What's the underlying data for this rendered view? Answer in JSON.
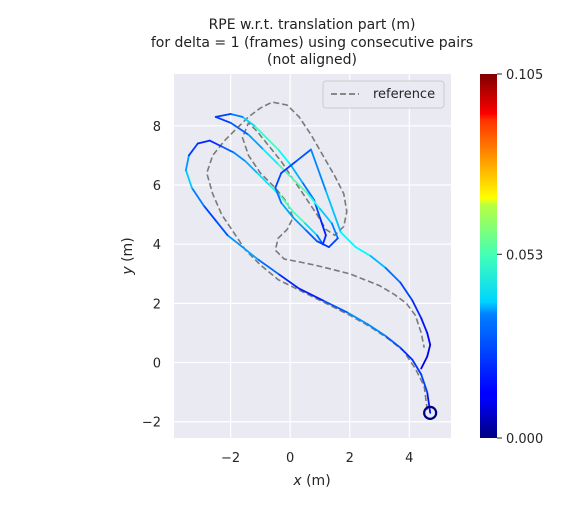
{
  "chart_data": {
    "type": "line",
    "title_lines": [
      "RPE w.r.t. translation part (m)",
      "for delta = 1 (frames) using consecutive pairs",
      "(not aligned)"
    ],
    "xlabel_var": "x",
    "xlabel_unit": " (m)",
    "ylabel_var": "y",
    "ylabel_unit": " (m)",
    "xlim": [
      -3.9,
      5.4
    ],
    "ylim": [
      -2.55,
      9.75
    ],
    "xticks": [
      -2,
      0,
      2,
      4
    ],
    "yticks": [
      -2,
      0,
      2,
      4,
      6,
      8
    ],
    "grid": true,
    "legend": {
      "position": "top-right",
      "entries": [
        "reference"
      ]
    },
    "colorbar": {
      "min": 0.0,
      "max": 0.105,
      "tick_values": [
        0.0,
        0.053,
        0.105
      ],
      "tick_labels": [
        "0.000",
        "0.053",
        "0.105"
      ],
      "colormap": "jet"
    },
    "series": [
      {
        "name": "reference",
        "style": "dashed",
        "color": "#7a7a7a",
        "x": [
          4.6,
          4.5,
          4.2,
          3.8,
          3.3,
          2.7,
          2.0,
          1.2,
          0.4,
          -0.4,
          -1.0,
          -1.5,
          -1.9,
          -2.3,
          -2.6,
          -2.8,
          -2.6,
          -2.2,
          -1.8,
          -1.4,
          -1.0,
          -0.6,
          -0.1,
          0.3,
          0.7,
          1.1,
          1.5,
          1.8,
          1.9,
          1.8,
          1.5,
          1.2,
          0.9,
          0.5,
          0.1,
          -0.3,
          -0.7,
          -1.1,
          -1.4,
          -1.6,
          -1.4,
          -1.0,
          -0.5,
          -0.1,
          0.1,
          -0.1,
          -0.4,
          -0.5,
          -0.2,
          0.3,
          0.8,
          1.2,
          1.6,
          2.0,
          2.5,
          3.0,
          3.5,
          3.9,
          4.2,
          4.4,
          4.5
        ],
        "y": [
          -1.6,
          -0.8,
          -0.2,
          0.4,
          0.8,
          1.2,
          1.6,
          2.0,
          2.4,
          2.8,
          3.3,
          3.8,
          4.4,
          5.0,
          5.7,
          6.4,
          7.0,
          7.5,
          7.9,
          8.3,
          8.6,
          8.8,
          8.7,
          8.3,
          7.7,
          7.0,
          6.3,
          5.7,
          5.1,
          4.6,
          4.3,
          4.5,
          5.0,
          5.6,
          6.2,
          6.8,
          7.3,
          7.8,
          8.1,
          7.6,
          7.0,
          6.4,
          5.9,
          5.4,
          4.9,
          4.5,
          4.2,
          3.8,
          3.5,
          3.4,
          3.3,
          3.2,
          3.1,
          3.0,
          2.8,
          2.6,
          2.3,
          2.0,
          1.6,
          1.0,
          0.5
        ]
      },
      {
        "name": "",
        "style": "colored",
        "x": [
          4.7,
          4.6,
          4.4,
          4.1,
          3.7,
          3.2,
          2.6,
          1.9,
          1.1,
          0.3,
          -0.4,
          -1.1,
          -1.6,
          -2.1,
          -2.5,
          -2.9,
          -3.3,
          -3.5,
          -3.4,
          -3.1,
          -2.7,
          -2.3,
          -1.9,
          -1.5,
          -1.1,
          -0.7,
          -0.3,
          0.1,
          0.5,
          0.9,
          1.1,
          1.2,
          1.0,
          0.8,
          0.4,
          0.0,
          -0.4,
          -0.8,
          -1.2,
          -1.6,
          -2.0,
          -2.5,
          -2.0,
          -1.4,
          -0.9,
          -0.4,
          0.1,
          0.6,
          1.0,
          1.4,
          1.6,
          1.3,
          0.9,
          0.5,
          0.1,
          -0.3,
          -0.5,
          -0.3,
          0.2,
          0.7,
          1.2,
          1.7,
          2.2,
          2.7,
          3.2,
          3.7,
          4.1,
          4.4,
          4.6,
          4.7,
          4.6,
          4.4
        ],
        "y": [
          -1.7,
          -1.0,
          -0.4,
          0.1,
          0.5,
          0.9,
          1.3,
          1.7,
          2.1,
          2.5,
          3.0,
          3.5,
          3.9,
          4.3,
          4.8,
          5.3,
          5.9,
          6.5,
          7.0,
          7.4,
          7.5,
          7.3,
          7.1,
          6.8,
          6.4,
          6.0,
          5.6,
          5.1,
          4.7,
          4.3,
          4.0,
          4.3,
          4.9,
          5.5,
          6.1,
          6.7,
          7.2,
          7.6,
          8.0,
          8.3,
          8.4,
          8.3,
          8.1,
          7.7,
          7.2,
          6.7,
          6.2,
          5.7,
          5.2,
          4.7,
          4.2,
          3.9,
          4.1,
          4.5,
          4.9,
          5.4,
          5.9,
          6.4,
          6.8,
          7.2,
          5.8,
          4.4,
          3.9,
          3.6,
          3.2,
          2.7,
          2.1,
          1.5,
          1.0,
          0.6,
          0.2,
          -0.2
        ],
        "error": [
          0.012,
          0.018,
          0.022,
          0.015,
          0.02,
          0.024,
          0.03,
          0.026,
          0.018,
          0.014,
          0.02,
          0.028,
          0.032,
          0.025,
          0.018,
          0.022,
          0.03,
          0.038,
          0.02,
          0.018,
          0.016,
          0.02,
          0.025,
          0.03,
          0.034,
          0.04,
          0.045,
          0.05,
          0.042,
          0.03,
          0.02,
          0.015,
          0.018,
          0.022,
          0.028,
          0.035,
          0.044,
          0.048,
          0.04,
          0.03,
          0.022,
          0.018,
          0.02,
          0.026,
          0.034,
          0.042,
          0.05,
          0.046,
          0.038,
          0.03,
          0.022,
          0.018,
          0.02,
          0.026,
          0.032,
          0.028,
          0.022,
          0.018,
          0.02,
          0.024,
          0.03,
          0.036,
          0.042,
          0.036,
          0.028,
          0.022,
          0.018,
          0.016,
          0.014,
          0.012,
          0.01,
          0.012
        ]
      }
    ]
  }
}
